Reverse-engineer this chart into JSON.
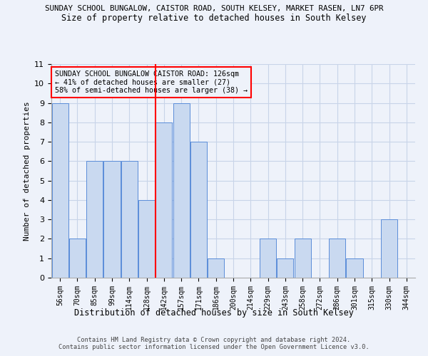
{
  "title_line1": "SUNDAY SCHOOL BUNGALOW, CAISTOR ROAD, SOUTH KELSEY, MARKET RASEN, LN7 6PR",
  "title_line2": "Size of property relative to detached houses in South Kelsey",
  "xlabel": "Distribution of detached houses by size in South Kelsey",
  "ylabel": "Number of detached properties",
  "categories": [
    "56sqm",
    "70sqm",
    "85sqm",
    "99sqm",
    "114sqm",
    "128sqm",
    "142sqm",
    "157sqm",
    "171sqm",
    "186sqm",
    "200sqm",
    "214sqm",
    "229sqm",
    "243sqm",
    "258sqm",
    "272sqm",
    "286sqm",
    "301sqm",
    "315sqm",
    "330sqm",
    "344sqm"
  ],
  "values": [
    9,
    2,
    6,
    6,
    6,
    4,
    8,
    9,
    7,
    1,
    0,
    0,
    2,
    1,
    2,
    0,
    2,
    1,
    0,
    3,
    0
  ],
  "bar_color": "#c9d9f0",
  "bar_edge_color": "#5b8dd9",
  "grid_color": "#c8d4e8",
  "vline_x": 5.5,
  "vline_color": "red",
  "annotation_title": "SUNDAY SCHOOL BUNGALOW CAISTOR ROAD: 126sqm",
  "annotation_line2": "← 41% of detached houses are smaller (27)",
  "annotation_line3": "58% of semi-detached houses are larger (38) →",
  "annotation_box_color": "red",
  "ylim": [
    0,
    11
  ],
  "yticks": [
    0,
    1,
    2,
    3,
    4,
    5,
    6,
    7,
    8,
    9,
    10,
    11
  ],
  "footnote1": "Contains HM Land Registry data © Crown copyright and database right 2024.",
  "footnote2": "Contains public sector information licensed under the Open Government Licence v3.0.",
  "bg_color": "#eef2fa"
}
